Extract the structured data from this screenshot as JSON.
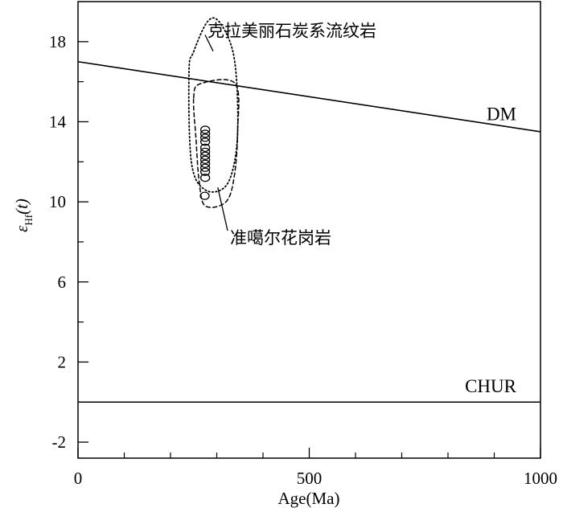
{
  "chart_data": {
    "type": "scatter",
    "xlabel": "Age(Ma)",
    "ylabel_main": "ε",
    "ylabel_sub": "Hf",
    "ylabel_tail": "(t)",
    "xlim": [
      0,
      1000
    ],
    "ylim": [
      -2.8,
      20
    ],
    "x_ticks": [
      0,
      500,
      1000
    ],
    "x_minor_ticks": [
      100,
      200,
      300,
      400,
      600,
      700,
      800,
      900
    ],
    "y_ticks": [
      -2,
      2,
      6,
      10,
      14,
      18
    ],
    "y_minor_ticks": [
      0,
      4,
      8,
      12,
      16
    ],
    "grid": false,
    "reference_lines": [
      {
        "label": "DM",
        "points": [
          [
            0,
            17.0
          ],
          [
            1000,
            13.5
          ]
        ]
      },
      {
        "label": "CHUR",
        "points": [
          [
            0,
            0
          ],
          [
            1000,
            0
          ]
        ]
      }
    ],
    "points": [
      {
        "x": 275,
        "y": 13.6
      },
      {
        "x": 275,
        "y": 13.4
      },
      {
        "x": 275,
        "y": 13.2
      },
      {
        "x": 275,
        "y": 13.0
      },
      {
        "x": 275,
        "y": 12.7
      },
      {
        "x": 275,
        "y": 12.5
      },
      {
        "x": 275,
        "y": 12.3
      },
      {
        "x": 275,
        "y": 12.1
      },
      {
        "x": 275,
        "y": 11.9
      },
      {
        "x": 275,
        "y": 11.7
      },
      {
        "x": 275,
        "y": 11.5
      },
      {
        "x": 275,
        "y": 11.2
      },
      {
        "x": 274,
        "y": 10.3
      }
    ],
    "regions": [
      {
        "label": "克拉美丽石炭系流纹岩",
        "style": "dotted",
        "polygon": [
          [
            250,
            17.5
          ],
          [
            280,
            19.0
          ],
          [
            305,
            19.0
          ],
          [
            335,
            17.5
          ],
          [
            345,
            15.0
          ],
          [
            342,
            12.5
          ],
          [
            320,
            10.8
          ],
          [
            275,
            10.6
          ],
          [
            245,
            12.0
          ],
          [
            240,
            16.5
          ]
        ]
      },
      {
        "label": "准噶尔花岗岩",
        "style": "dashed",
        "polygon": [
          [
            250,
            15.2
          ],
          [
            265,
            15.9
          ],
          [
            340,
            15.9
          ],
          [
            345,
            13.5
          ],
          [
            338,
            11.3
          ],
          [
            320,
            10.0
          ],
          [
            275,
            9.8
          ],
          [
            262,
            11.0
          ],
          [
            255,
            13.2
          ]
        ]
      }
    ],
    "annotations": [
      {
        "text": "克拉美丽石炭系流纹岩",
        "target": [
          320,
          17.6
        ],
        "label_at": [
          440,
          18.5
        ]
      },
      {
        "text": "准噶尔花岗岩",
        "target": [
          330,
          10.8
        ],
        "label_at": [
          480,
          8.0
        ]
      }
    ]
  }
}
